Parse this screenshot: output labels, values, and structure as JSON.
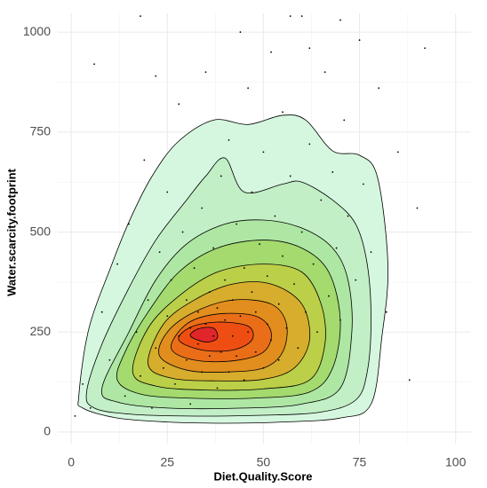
{
  "chart_data": {
    "type": "scatter",
    "x_label": "Diet.Quality.Score",
    "y_label": "Water.scarcity.footprint",
    "xlim": [
      -3.5,
      104
    ],
    "ylim": [
      -29,
      1047
    ],
    "xticks": [
      0,
      25,
      50,
      75,
      100
    ],
    "yticks": [
      0,
      250,
      500,
      750,
      1000
    ],
    "grid": true,
    "point_color": "#000000",
    "x": [
      3,
      5,
      8,
      10,
      12,
      14,
      15,
      17,
      18,
      19,
      20,
      21,
      22,
      23,
      24,
      25,
      25,
      26,
      27,
      28,
      28,
      29,
      30,
      30,
      31,
      31,
      32,
      33,
      33,
      34,
      34,
      35,
      35,
      36,
      36,
      37,
      37,
      38,
      38,
      39,
      39,
      40,
      40,
      41,
      41,
      42,
      42,
      43,
      43,
      44,
      44,
      45,
      45,
      46,
      46,
      47,
      47,
      48,
      48,
      49,
      50,
      50,
      51,
      51,
      52,
      52,
      53,
      54,
      54,
      55,
      55,
      56,
      57,
      58,
      59,
      60,
      60,
      61,
      62,
      63,
      64,
      65,
      66,
      67,
      68,
      69,
      70,
      71,
      72,
      74,
      75,
      76,
      78,
      80,
      82,
      85,
      88,
      90,
      92,
      1,
      6,
      18,
      22,
      57,
      62,
      70
    ],
    "y": [
      120,
      60,
      300,
      180,
      420,
      90,
      520,
      250,
      140,
      680,
      330,
      60,
      210,
      450,
      160,
      290,
      600,
      380,
      120,
      240,
      820,
      500,
      180,
      330,
      260,
      70,
      410,
      220,
      300,
      150,
      560,
      270,
      900,
      350,
      190,
      240,
      460,
      110,
      310,
      640,
      200,
      280,
      380,
      150,
      730,
      240,
      330,
      520,
      190,
      1000,
      290,
      410,
      130,
      250,
      860,
      350,
      600,
      200,
      300,
      470,
      160,
      700,
      270,
      390,
      950,
      230,
      540,
      320,
      180,
      440,
      800,
      260,
      640,
      370,
      210,
      500,
      1040,
      300,
      720,
      420,
      250,
      580,
      900,
      340,
      650,
      460,
      280,
      780,
      540,
      380,
      980,
      620,
      450,
      860,
      300,
      700,
      130,
      560,
      960,
      40,
      920,
      1040,
      890,
      1040,
      960,
      1030
    ],
    "contours": [
      {
        "color": "#d6f7df",
        "x": [
          2,
          3,
          12,
          25,
          40,
          55,
          70,
          78,
          80.8,
          82.4,
          79.7,
          75,
          68,
          61,
          55,
          46,
          37,
          27.7,
          20.8,
          15,
          10.4,
          4.6
        ],
        "y": [
          93,
          60,
          35,
          25,
          22,
          25,
          35,
          70,
          237,
          415,
          636,
          692,
          703,
          780,
          792,
          769,
          780,
          725,
          636,
          525,
          415,
          259
        ]
      },
      {
        "color": "#c2efc6",
        "x": [
          4,
          6,
          15,
          30,
          50,
          65,
          74,
          77,
          78,
          77,
          74,
          68,
          60,
          55,
          45,
          40,
          35,
          30,
          22,
          15,
          8
        ],
        "y": [
          100,
          60,
          45,
          40,
          42,
          50,
          80,
          150,
          280,
          420,
          520,
          580,
          625,
          620,
          600,
          685,
          640,
          580,
          480,
          360,
          220
        ]
      },
      {
        "color": "#aee7a4",
        "x": [
          8,
          12,
          25,
          45,
          60,
          70,
          73,
          72,
          68,
          60,
          50,
          40,
          30,
          22,
          15
        ],
        "y": [
          110,
          75,
          60,
          60,
          70,
          110,
          250,
          380,
          460,
          510,
          530,
          520,
          470,
          380,
          250
        ]
      },
      {
        "color": "#a4da6e",
        "x": [
          12,
          18,
          30,
          48,
          62,
          68,
          70,
          67,
          60,
          50,
          38,
          28,
          20,
          14
        ],
        "y": [
          130,
          95,
          85,
          85,
          100,
          160,
          280,
          400,
          460,
          480,
          460,
          400,
          300,
          200
        ]
      },
      {
        "color": "#bccf48",
        "x": [
          16,
          22,
          35,
          50,
          62,
          66,
          65,
          60,
          50,
          38,
          28,
          20
        ],
        "y": [
          150,
          115,
          105,
          108,
          130,
          220,
          320,
          400,
          420,
          400,
          340,
          260
        ]
      },
      {
        "color": "#d6ad2c",
        "x": [
          20,
          26,
          38,
          50,
          58,
          62,
          60,
          52,
          42,
          32,
          24
        ],
        "y": [
          170,
          135,
          128,
          132,
          160,
          230,
          320,
          370,
          370,
          330,
          270
        ]
      },
      {
        "color": "#e28e1e",
        "x": [
          23,
          30,
          40,
          50,
          55,
          56,
          52,
          42,
          32,
          25
        ],
        "y": [
          190,
          155,
          150,
          160,
          200,
          270,
          320,
          330,
          300,
          250
        ]
      },
      {
        "color": "#ea6e18",
        "x": [
          26,
          32,
          42,
          50,
          52,
          48,
          38,
          30
        ],
        "y": [
          210,
          180,
          178,
          200,
          250,
          290,
          295,
          270
        ]
      },
      {
        "color": "#ee4e12",
        "x": [
          28,
          34,
          42,
          47,
          46,
          38,
          31
        ],
        "y": [
          230,
          205,
          205,
          230,
          265,
          275,
          262
        ]
      },
      {
        "color": "#e0262a",
        "x": [
          31,
          35,
          38,
          37,
          33
        ],
        "y": [
          240,
          225,
          235,
          260,
          258
        ]
      }
    ]
  }
}
